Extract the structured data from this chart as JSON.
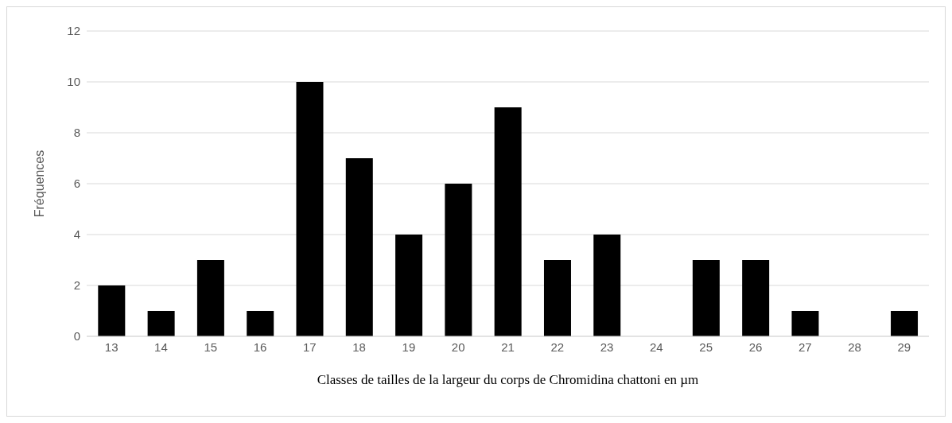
{
  "chart_data": {
    "type": "bar",
    "xlabel": "Classes de tailles de la largeur du corps de Chromidina chattoni en µm",
    "ylabel": "Fréquences",
    "categories": [
      "13",
      "14",
      "15",
      "16",
      "17",
      "18",
      "19",
      "20",
      "21",
      "22",
      "23",
      "24",
      "25",
      "26",
      "27",
      "28",
      "29"
    ],
    "values": [
      2,
      1,
      3,
      1,
      10,
      7,
      4,
      6,
      9,
      3,
      4,
      0,
      3,
      3,
      1,
      0,
      1
    ],
    "color": "#000000",
    "ylim": [
      0,
      12
    ],
    "yticks": [
      0,
      2,
      4,
      6,
      8,
      10,
      12
    ],
    "grid": "y"
  }
}
